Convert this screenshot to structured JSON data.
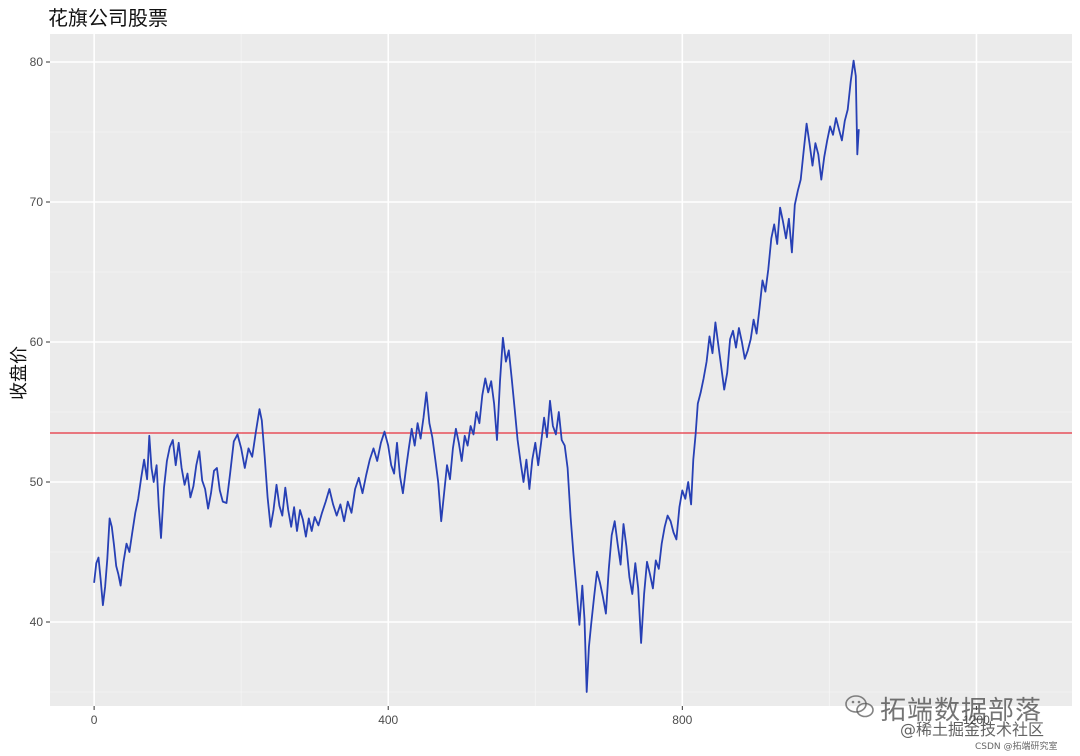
{
  "chart_data": {
    "type": "line",
    "title": "花旗公司股票",
    "xlabel": "",
    "ylabel": "收盘价",
    "xlim": [
      -60,
      1330
    ],
    "ylim": [
      34,
      82
    ],
    "x_ticks": [
      0,
      400,
      800,
      1200
    ],
    "x_tick_labels": [
      "0",
      "400",
      "800",
      "1200"
    ],
    "y_ticks": [
      40,
      50,
      60,
      70,
      80
    ],
    "y_tick_labels": [
      "40",
      "50",
      "60",
      "70",
      "80"
    ],
    "grid": true,
    "reference_line": {
      "y": 53.5,
      "color": "#e8505b"
    },
    "series": [
      {
        "color": "#2740b5",
        "points": [
          [
            0,
            42.8
          ],
          [
            3,
            44.2
          ],
          [
            6,
            44.6
          ],
          [
            9,
            43.0
          ],
          [
            12,
            41.2
          ],
          [
            15,
            42.5
          ],
          [
            18,
            44.5
          ],
          [
            21,
            47.4
          ],
          [
            24,
            46.8
          ],
          [
            27,
            45.5
          ],
          [
            30,
            44.0
          ],
          [
            33,
            43.4
          ],
          [
            36,
            42.6
          ],
          [
            40,
            44.3
          ],
          [
            44,
            45.6
          ],
          [
            48,
            45.0
          ],
          [
            52,
            46.4
          ],
          [
            56,
            47.8
          ],
          [
            60,
            48.8
          ],
          [
            64,
            50.3
          ],
          [
            68,
            51.6
          ],
          [
            72,
            50.2
          ],
          [
            75,
            53.3
          ],
          [
            78,
            51.0
          ],
          [
            81,
            50.0
          ],
          [
            85,
            51.2
          ],
          [
            88,
            48.2
          ],
          [
            91,
            46.0
          ],
          [
            95,
            49.6
          ],
          [
            99,
            51.5
          ],
          [
            103,
            52.5
          ],
          [
            107,
            53.0
          ],
          [
            111,
            51.2
          ],
          [
            115,
            52.8
          ],
          [
            119,
            51.0
          ],
          [
            123,
            49.8
          ],
          [
            127,
            50.6
          ],
          [
            131,
            48.9
          ],
          [
            135,
            49.7
          ],
          [
            139,
            51.2
          ],
          [
            143,
            52.2
          ],
          [
            147,
            50.1
          ],
          [
            151,
            49.5
          ],
          [
            155,
            48.1
          ],
          [
            159,
            49.2
          ],
          [
            163,
            50.8
          ],
          [
            167,
            51.0
          ],
          [
            171,
            49.4
          ],
          [
            175,
            48.6
          ],
          [
            180,
            48.5
          ],
          [
            185,
            50.6
          ],
          [
            190,
            52.9
          ],
          [
            195,
            53.4
          ],
          [
            200,
            52.4
          ],
          [
            205,
            51.0
          ],
          [
            210,
            52.4
          ],
          [
            215,
            51.8
          ],
          [
            220,
            53.6
          ],
          [
            225,
            55.2
          ],
          [
            228,
            54.4
          ],
          [
            232,
            51.8
          ],
          [
            236,
            48.9
          ],
          [
            240,
            46.8
          ],
          [
            244,
            48.0
          ],
          [
            248,
            49.8
          ],
          [
            252,
            48.3
          ],
          [
            256,
            47.6
          ],
          [
            260,
            49.6
          ],
          [
            264,
            48.0
          ],
          [
            268,
            46.8
          ],
          [
            272,
            48.2
          ],
          [
            276,
            46.5
          ],
          [
            280,
            48.0
          ],
          [
            284,
            47.3
          ],
          [
            288,
            46.1
          ],
          [
            292,
            47.4
          ],
          [
            296,
            46.5
          ],
          [
            300,
            47.5
          ],
          [
            305,
            46.9
          ],
          [
            310,
            47.8
          ],
          [
            315,
            48.6
          ],
          [
            320,
            49.5
          ],
          [
            325,
            48.4
          ],
          [
            330,
            47.6
          ],
          [
            335,
            48.4
          ],
          [
            340,
            47.2
          ],
          [
            345,
            48.6
          ],
          [
            350,
            47.8
          ],
          [
            355,
            49.5
          ],
          [
            360,
            50.3
          ],
          [
            365,
            49.2
          ],
          [
            370,
            50.5
          ],
          [
            375,
            51.6
          ],
          [
            380,
            52.4
          ],
          [
            385,
            51.5
          ],
          [
            390,
            52.8
          ],
          [
            395,
            53.6
          ],
          [
            400,
            52.6
          ],
          [
            404,
            51.2
          ],
          [
            408,
            50.6
          ],
          [
            412,
            52.8
          ],
          [
            416,
            50.4
          ],
          [
            420,
            49.2
          ],
          [
            424,
            50.9
          ],
          [
            428,
            52.4
          ],
          [
            432,
            53.8
          ],
          [
            436,
            52.6
          ],
          [
            440,
            54.2
          ],
          [
            444,
            53.1
          ],
          [
            448,
            54.6
          ],
          [
            452,
            56.4
          ],
          [
            456,
            54.2
          ],
          [
            460,
            53.2
          ],
          [
            464,
            51.6
          ],
          [
            468,
            50.0
          ],
          [
            472,
            47.2
          ],
          [
            476,
            49.2
          ],
          [
            480,
            51.2
          ],
          [
            484,
            50.2
          ],
          [
            488,
            52.4
          ],
          [
            492,
            53.8
          ],
          [
            496,
            52.8
          ],
          [
            500,
            51.5
          ],
          [
            504,
            53.3
          ],
          [
            508,
            52.6
          ],
          [
            512,
            54.0
          ],
          [
            516,
            53.4
          ],
          [
            520,
            55.0
          ],
          [
            524,
            54.2
          ],
          [
            528,
            56.2
          ],
          [
            532,
            57.4
          ],
          [
            536,
            56.4
          ],
          [
            540,
            57.2
          ],
          [
            544,
            55.6
          ],
          [
            548,
            53.0
          ],
          [
            552,
            57.2
          ],
          [
            556,
            60.3
          ],
          [
            560,
            58.6
          ],
          [
            564,
            59.4
          ],
          [
            568,
            57.4
          ],
          [
            572,
            55.2
          ],
          [
            576,
            53.0
          ],
          [
            580,
            51.4
          ],
          [
            584,
            50.0
          ],
          [
            588,
            51.6
          ],
          [
            592,
            49.5
          ],
          [
            596,
            51.6
          ],
          [
            600,
            52.8
          ],
          [
            604,
            51.2
          ],
          [
            608,
            52.8
          ],
          [
            612,
            54.6
          ],
          [
            616,
            53.2
          ],
          [
            620,
            55.8
          ],
          [
            624,
            54.0
          ],
          [
            628,
            53.4
          ],
          [
            632,
            55.0
          ],
          [
            636,
            53.0
          ],
          [
            640,
            52.6
          ],
          [
            644,
            51.0
          ],
          [
            648,
            47.5
          ],
          [
            652,
            44.8
          ],
          [
            656,
            42.4
          ],
          [
            660,
            39.8
          ],
          [
            664,
            42.6
          ],
          [
            667,
            40.2
          ],
          [
            670,
            35.0
          ],
          [
            673,
            38.2
          ],
          [
            676,
            39.8
          ],
          [
            680,
            41.8
          ],
          [
            684,
            43.6
          ],
          [
            688,
            42.8
          ],
          [
            692,
            41.8
          ],
          [
            696,
            40.6
          ],
          [
            700,
            43.8
          ],
          [
            704,
            46.2
          ],
          [
            708,
            47.2
          ],
          [
            712,
            45.6
          ],
          [
            716,
            44.1
          ],
          [
            720,
            47.0
          ],
          [
            724,
            45.4
          ],
          [
            728,
            43.2
          ],
          [
            732,
            42.0
          ],
          [
            736,
            44.2
          ],
          [
            740,
            42.4
          ],
          [
            744,
            38.5
          ],
          [
            748,
            42.0
          ],
          [
            752,
            44.3
          ],
          [
            756,
            43.4
          ],
          [
            760,
            42.4
          ],
          [
            764,
            44.4
          ],
          [
            768,
            43.8
          ],
          [
            772,
            45.6
          ],
          [
            776,
            46.8
          ],
          [
            780,
            47.6
          ],
          [
            784,
            47.2
          ],
          [
            788,
            46.4
          ],
          [
            792,
            45.9
          ],
          [
            796,
            48.2
          ],
          [
            800,
            49.4
          ],
          [
            804,
            48.8
          ],
          [
            808,
            50.0
          ],
          [
            812,
            48.4
          ],
          [
            815,
            51.6
          ],
          [
            818,
            53.4
          ],
          [
            821,
            55.6
          ],
          [
            825,
            56.4
          ],
          [
            829,
            57.4
          ],
          [
            833,
            58.6
          ],
          [
            837,
            60.4
          ],
          [
            841,
            59.2
          ],
          [
            845,
            61.4
          ],
          [
            849,
            59.8
          ],
          [
            853,
            58.2
          ],
          [
            857,
            56.6
          ],
          [
            861,
            57.8
          ],
          [
            865,
            60.2
          ],
          [
            869,
            60.8
          ],
          [
            873,
            59.6
          ],
          [
            877,
            61.0
          ],
          [
            881,
            60.0
          ],
          [
            885,
            58.8
          ],
          [
            889,
            59.4
          ],
          [
            893,
            60.2
          ],
          [
            897,
            61.6
          ],
          [
            901,
            60.6
          ],
          [
            905,
            62.4
          ],
          [
            909,
            64.4
          ],
          [
            913,
            63.6
          ],
          [
            917,
            65.2
          ],
          [
            921,
            67.4
          ],
          [
            925,
            68.4
          ],
          [
            929,
            67.0
          ],
          [
            933,
            69.6
          ],
          [
            937,
            68.6
          ],
          [
            941,
            67.4
          ],
          [
            945,
            68.8
          ],
          [
            949,
            66.4
          ],
          [
            953,
            69.8
          ],
          [
            957,
            70.8
          ],
          [
            961,
            71.6
          ],
          [
            965,
            73.6
          ],
          [
            969,
            75.6
          ],
          [
            973,
            74.2
          ],
          [
            977,
            72.6
          ],
          [
            981,
            74.2
          ],
          [
            985,
            73.4
          ],
          [
            989,
            71.6
          ],
          [
            993,
            73.2
          ],
          [
            997,
            74.4
          ],
          [
            1001,
            75.4
          ],
          [
            1005,
            74.8
          ],
          [
            1009,
            76.0
          ],
          [
            1013,
            75.2
          ],
          [
            1017,
            74.4
          ],
          [
            1021,
            75.8
          ],
          [
            1025,
            76.6
          ],
          [
            1029,
            78.6
          ],
          [
            1033,
            80.1
          ],
          [
            1036,
            79.0
          ],
          [
            1038,
            73.4
          ],
          [
            1040,
            75.2
          ]
        ]
      }
    ]
  },
  "watermark": {
    "main": "拓端数据部落",
    "sub": "@稀土掘金技术社区",
    "csdn": "CSDN @拓端研究室"
  }
}
